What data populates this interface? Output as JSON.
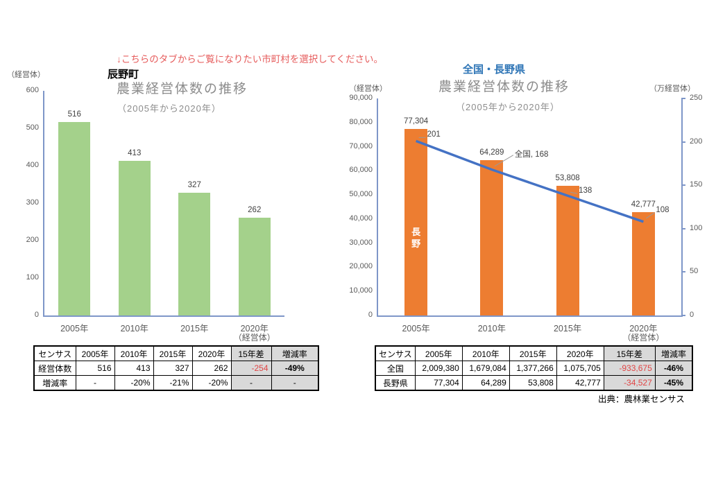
{
  "page": {
    "instruction": "↓こちらのタブからご覧になりたい市町村を選択してください。",
    "source_note": "出典：農林業センサス"
  },
  "colors": {
    "accent_red": "#E65C5C",
    "green_bar": "#A4D18B",
    "orange_bar": "#ED7D31",
    "line_blue": "#4472C4",
    "region_title_blue": "#2E75B6",
    "axis_blue": "#7E96C8",
    "table_gray": "#D9D9D9",
    "negative_red": "#E04545"
  },
  "chart_data": [
    {
      "type": "bar",
      "region": "辰野町",
      "title": "農業経営体数の推移",
      "subtitle": "（2005年から2020年）",
      "y_axis_unit": "（経営体）",
      "x_last_unit_note": "（経営体）",
      "categories": [
        "2005年",
        "2010年",
        "2015年",
        "2020年"
      ],
      "values": [
        516,
        413,
        327,
        262
      ],
      "value_labels": [
        "516",
        "413",
        "327",
        "262"
      ],
      "ylim": [
        0,
        600
      ],
      "ytick_labels": [
        "0",
        "100",
        "200",
        "300",
        "400",
        "500",
        "600"
      ],
      "bar_color": "#A4D18B",
      "grid": false,
      "legend": "none"
    },
    {
      "type": "bar+line",
      "region": "全国・長野県",
      "title": "農業経営体数の推移",
      "subtitle": "（2005年から2020年）",
      "left_axis_unit": "（経営体）",
      "right_axis_unit": "（万経営体）",
      "x_last_unit_note": "（経営体）",
      "categories": [
        "2005年",
        "2010年",
        "2015年",
        "2020年"
      ],
      "series": [
        {
          "name": "長野",
          "type": "bar",
          "axis": "left",
          "values": [
            77304,
            64289,
            53808,
            42777
          ],
          "value_labels": [
            "77,304",
            "64,289",
            "53,808",
            "42,777"
          ],
          "color": "#ED7D31",
          "in_bar_label": "長野"
        },
        {
          "name": "全国",
          "type": "line",
          "axis": "right",
          "values": [
            201,
            168,
            138,
            108
          ],
          "point_labels": [
            "201",
            "全国, 168",
            "138",
            "108"
          ],
          "color": "#4472C4"
        }
      ],
      "left_ylim": [
        0,
        90000
      ],
      "left_ytick_labels": [
        "0",
        "10,000",
        "20,000",
        "30,000",
        "40,000",
        "50,000",
        "60,000",
        "70,000",
        "80,000",
        "90,000"
      ],
      "right_ylim": [
        0,
        250
      ],
      "right_ytick_labels": [
        "0",
        "50",
        "100",
        "150",
        "200",
        "250"
      ],
      "grid": false,
      "legend": "none"
    }
  ],
  "tables": [
    {
      "headers": [
        "センサス",
        "2005年",
        "2010年",
        "2015年",
        "2020年",
        "15年差",
        "増減率"
      ],
      "rows": [
        {
          "label": "経営体数",
          "cells": [
            "516",
            "413",
            "327",
            "262",
            "-254",
            "-49%"
          ]
        },
        {
          "label": "増減率",
          "cells": [
            "-",
            "-20%",
            "-21%",
            "-20%",
            "-",
            "-"
          ]
        }
      ]
    },
    {
      "headers": [
        "センサス",
        "2005年",
        "2010年",
        "2015年",
        "2020年",
        "15年差",
        "増減率"
      ],
      "rows": [
        {
          "label": "全国",
          "cells": [
            "2,009,380",
            "1,679,084",
            "1,377,266",
            "1,075,705",
            "-933,675",
            "-46%"
          ]
        },
        {
          "label": "長野県",
          "cells": [
            "77,304",
            "64,289",
            "53,808",
            "42,777",
            "-34,527",
            "-45%"
          ]
        }
      ]
    }
  ]
}
